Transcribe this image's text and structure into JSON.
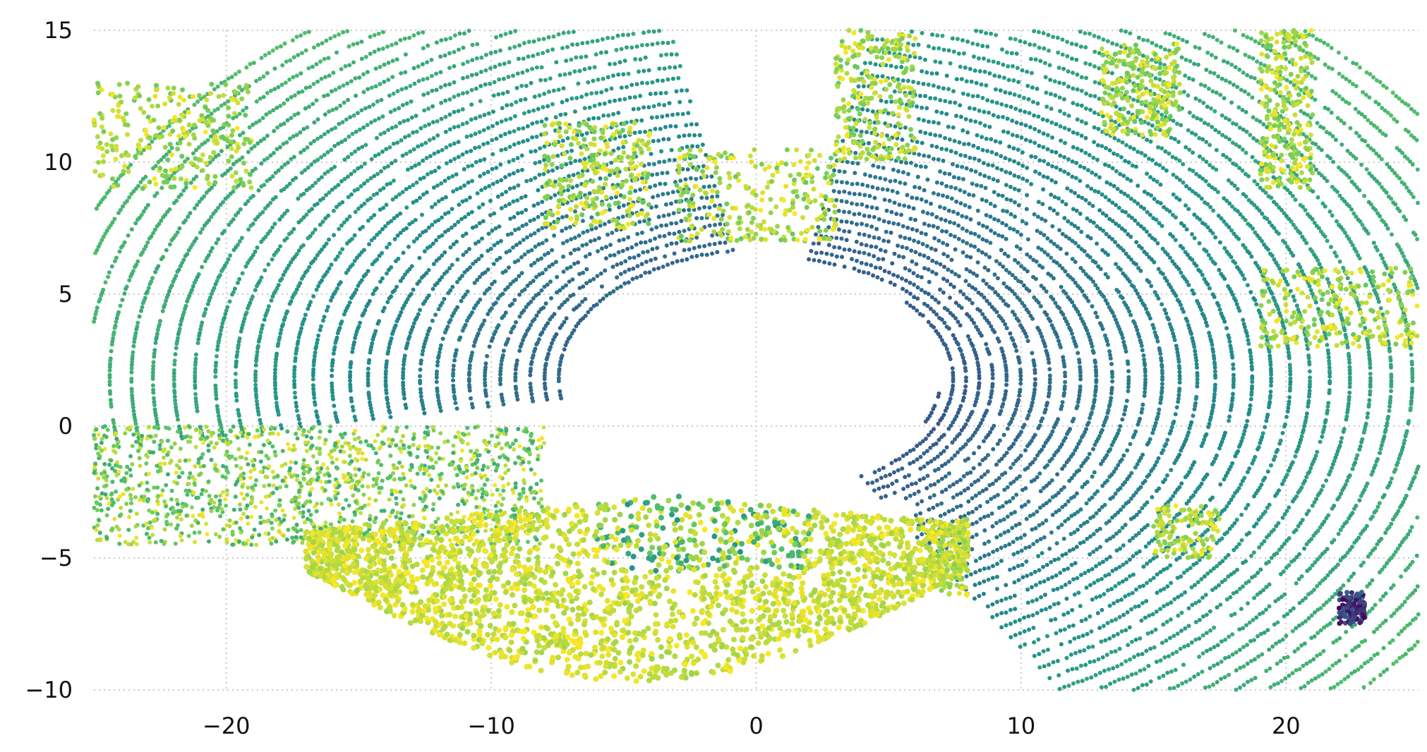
{
  "chart_data": {
    "type": "scatter",
    "title": "",
    "xlabel": "",
    "ylabel": "",
    "xlim": [
      -25,
      25
    ],
    "ylim": [
      -10,
      15
    ],
    "x_ticks": [
      -20,
      -10,
      0,
      10,
      20
    ],
    "y_ticks": [
      -10,
      -5,
      0,
      5,
      10,
      15
    ],
    "x_tick_labels": [
      "−20",
      "−10",
      "0",
      "10",
      "20"
    ],
    "y_tick_labels": [
      "−10",
      "−5",
      "0",
      "5",
      "10",
      "15"
    ],
    "grid": "dotted",
    "legend": "none",
    "colormap": "viridis",
    "point_cloud_regions": {
      "center_empty_zone": {
        "x": [
          -7,
          7
        ],
        "y": [
          -2.5,
          6.5
        ]
      },
      "ring_arcs_left": {
        "x_center": 0.5,
        "y_center": 1.8,
        "radius_range": [
          5,
          28
        ],
        "angle_deg": [
          100,
          190
        ]
      },
      "ring_arcs_right": {
        "x_center": 0.5,
        "y_center": 1.8,
        "radius_range": [
          6,
          30
        ],
        "angle_deg": [
          -60,
          80
        ]
      },
      "ground_band_bottom_left": {
        "x": [
          -25,
          -8
        ],
        "y": [
          -4.5,
          0
        ]
      },
      "high_points_bottom": {
        "x": [
          -17,
          8
        ],
        "y": [
          -10,
          -2.5
        ]
      },
      "structures_top": [
        {
          "x": [
            -25,
            -19
          ],
          "y": [
            9,
            13
          ]
        },
        {
          "x": [
            -8,
            -4
          ],
          "y": [
            7.5,
            11.5
          ]
        },
        {
          "x": [
            -3,
            3
          ],
          "y": [
            7,
            10.5
          ]
        },
        {
          "x": [
            3,
            6
          ],
          "y": [
            10,
            15
          ]
        },
        {
          "x": [
            13,
            16
          ],
          "y": [
            11,
            14.5
          ]
        },
        {
          "x": [
            19,
            21
          ],
          "y": [
            9,
            15
          ]
        },
        {
          "x": [
            19,
            25
          ],
          "y": [
            3,
            6
          ]
        }
      ],
      "small_objects": [
        {
          "x": [
            15,
            17.5
          ],
          "y": [
            -5,
            -3
          ]
        },
        {
          "x": [
            6.5,
            8
          ],
          "y": [
            -6.5,
            -3.5
          ]
        },
        {
          "x": [
            22,
            23
          ],
          "y": [
            -7.5,
            -6.3
          ]
        }
      ]
    }
  },
  "colors": {
    "viridis": [
      "#440154",
      "#3b528b",
      "#21918c",
      "#5ec962",
      "#fde725"
    ],
    "grid": "#c8c8c8",
    "background": "#ffffff"
  }
}
